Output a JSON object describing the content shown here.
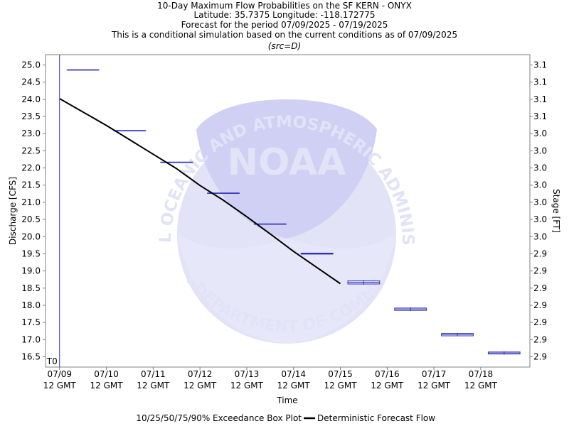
{
  "titles": [
    "10-Day Maximum Flow Probabilities on the SF KERN - ONYX",
    "Latitude: 35.7375 Longitude: -118.172775",
    "Forecast for the period 07/09/2025 - 07/19/2025",
    "This is a conditional simulation based on the current conditions as of 07/09/2025",
    "(src=D)"
  ],
  "watermark": {
    "logo_text": "NOAA",
    "arc_top": "NATIONAL OCEANIC AND ATMOSPHERIC ADMINISTRATION",
    "arc_bottom": "U.S. DEPARTMENT OF COMMERCE"
  },
  "legend": {
    "box_label": "10/25/50/75/90% Exceedance Box Plot",
    "line_label": "Deterministic Forecast Flow"
  },
  "colors": {
    "box": "#3333bb",
    "forecast": "#000000",
    "t0_line": "#3333bb",
    "axis": "#808080",
    "watermark": "#e2e3f6"
  },
  "chart_data": {
    "type": "box",
    "xlabel": "Time",
    "ylabel": "Discharge [CFS]",
    "y2label": "Stage [FT]",
    "t0_label": "T0",
    "ylim": [
      16.2,
      25.3
    ],
    "xlim": [
      -0.3,
      10.05
    ],
    "y_ticks": [
      16.5,
      17.0,
      17.5,
      18.0,
      18.5,
      19.0,
      19.5,
      20.0,
      20.5,
      21.0,
      21.5,
      22.0,
      22.5,
      23.0,
      23.5,
      24.0,
      24.5,
      25.0
    ],
    "y_tick_labels": [
      "16.5",
      "17.0",
      "17.5",
      "18.0",
      "18.5",
      "19.0",
      "19.5",
      "20.0",
      "20.5",
      "21.0",
      "21.5",
      "22.0",
      "22.5",
      "23.0",
      "23.5",
      "24.0",
      "24.5",
      "25.0"
    ],
    "y2_tick_labels": [
      "2.9",
      "2.9",
      "2.9",
      "2.9",
      "2.9",
      "2.9",
      "2.9",
      "3.0",
      "3.0",
      "3.0",
      "3.0",
      "3.0",
      "3.0",
      "3.0",
      "3.1",
      "3.1",
      "3.1",
      "3.1"
    ],
    "x_ticks": [
      0,
      1,
      2,
      3,
      4,
      5,
      6,
      7,
      8,
      9
    ],
    "x_tick_labels": [
      [
        "07/09",
        "12 GMT"
      ],
      [
        "07/10",
        "12 GMT"
      ],
      [
        "07/11",
        "12 GMT"
      ],
      [
        "07/12",
        "12 GMT"
      ],
      [
        "07/13",
        "12 GMT"
      ],
      [
        "07/14",
        "12 GMT"
      ],
      [
        "07/15",
        "12 GMT"
      ],
      [
        "07/16",
        "12 GMT"
      ],
      [
        "07/17",
        "12 GMT"
      ],
      [
        "07/18",
        "12 GMT"
      ]
    ],
    "boxes": [
      {
        "x": 0.5,
        "p10": 24.86,
        "p25": 24.86,
        "p50": 24.86,
        "p75": 24.86,
        "p90": 24.86
      },
      {
        "x": 1.5,
        "p10": 23.09,
        "p25": 23.09,
        "p50": 23.09,
        "p75": 23.09,
        "p90": 23.09
      },
      {
        "x": 2.5,
        "p10": 22.17,
        "p25": 22.17,
        "p50": 22.17,
        "p75": 22.17,
        "p90": 22.17
      },
      {
        "x": 3.5,
        "p10": 21.27,
        "p25": 21.27,
        "p50": 21.27,
        "p75": 21.27,
        "p90": 21.27
      },
      {
        "x": 4.5,
        "p10": 20.37,
        "p25": 20.37,
        "p50": 20.37,
        "p75": 20.37,
        "p90": 20.37
      },
      {
        "x": 5.5,
        "p10": 19.48,
        "p25": 19.49,
        "p50": 19.51,
        "p75": 19.52,
        "p90": 19.53
      },
      {
        "x": 6.5,
        "p10": 18.6,
        "p25": 18.62,
        "p50": 18.67,
        "p75": 18.71,
        "p90": 18.73
      },
      {
        "x": 7.5,
        "p10": 17.83,
        "p25": 17.85,
        "p50": 17.89,
        "p75": 17.92,
        "p90": 17.94
      },
      {
        "x": 8.5,
        "p10": 17.1,
        "p25": 17.11,
        "p50": 17.15,
        "p75": 17.18,
        "p90": 17.19
      },
      {
        "x": 9.5,
        "p10": 16.56,
        "p25": 16.58,
        "p50": 16.61,
        "p75": 16.64,
        "p90": 16.66
      }
    ],
    "forecast": {
      "x": [
        0,
        0.5,
        1,
        1.5,
        2,
        2.5,
        3,
        3.5,
        4,
        4.5,
        5,
        5.5,
        6
      ],
      "y": [
        24.02,
        23.63,
        23.24,
        22.82,
        22.4,
        21.98,
        21.49,
        21.06,
        20.58,
        20.08,
        19.57,
        19.1,
        18.63
      ]
    },
    "grid": false
  }
}
